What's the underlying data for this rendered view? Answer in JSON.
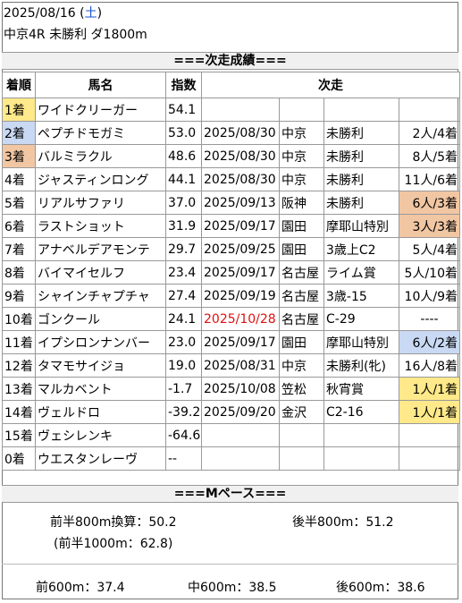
{
  "header": {
    "date": "2025/08/16",
    "weekday_open": "(",
    "weekday": "土",
    "weekday_close": ")",
    "race": "中京4R 未勝利 ダ1800m"
  },
  "next_section_title": "===次走成績===",
  "columns": {
    "rank": "着順",
    "horse": "馬名",
    "index": "指数",
    "next": "次走"
  },
  "rows": [
    {
      "rank": "1着",
      "rank_hl": "gold",
      "horse": "ワイドクリーガー",
      "index": "54.1",
      "date": "",
      "date_red": false,
      "course": "",
      "race": "",
      "result": "",
      "result_hl": ""
    },
    {
      "rank": "2着",
      "rank_hl": "silver",
      "horse": "ペプチドモガミ",
      "index": "53.0",
      "date": "2025/08/30",
      "date_red": false,
      "course": "中京",
      "race": "未勝利",
      "result": "2人/4着",
      "result_hl": ""
    },
    {
      "rank": "3着",
      "rank_hl": "bronze",
      "horse": "バルミラクル",
      "index": "48.6",
      "date": "2025/08/30",
      "date_red": false,
      "course": "中京",
      "race": "未勝利",
      "result": "8人/5着",
      "result_hl": ""
    },
    {
      "rank": "4着",
      "rank_hl": "",
      "horse": "ジャスティンロング",
      "index": "44.1",
      "date": "2025/08/30",
      "date_red": false,
      "course": "中京",
      "race": "未勝利",
      "result": "11人/6着",
      "result_hl": ""
    },
    {
      "rank": "5着",
      "rank_hl": "",
      "horse": "リアルサファリ",
      "index": "37.0",
      "date": "2025/09/13",
      "date_red": false,
      "course": "阪神",
      "race": "未勝利",
      "result": "6人/3着",
      "result_hl": "bronze"
    },
    {
      "rank": "6着",
      "rank_hl": "",
      "horse": "ラストショット",
      "index": "31.9",
      "date": "2025/09/17",
      "date_red": false,
      "course": "園田",
      "race": "摩耶山特別",
      "result": "3人/3着",
      "result_hl": "bronze"
    },
    {
      "rank": "7着",
      "rank_hl": "",
      "horse": "アナベルデアモンテ",
      "index": "29.7",
      "date": "2025/09/25",
      "date_red": false,
      "course": "園田",
      "race": "3歳上C2",
      "result": "5人/4着",
      "result_hl": ""
    },
    {
      "rank": "8着",
      "rank_hl": "",
      "horse": "バイマイセルフ",
      "index": "23.4",
      "date": "2025/09/17",
      "date_red": false,
      "course": "名古屋",
      "race": "ライム賞",
      "result": "5人/10着",
      "result_hl": ""
    },
    {
      "rank": "9着",
      "rank_hl": "",
      "horse": "シャインチャプチャ",
      "index": "27.4",
      "date": "2025/09/19",
      "date_red": false,
      "course": "名古屋",
      "race": "3歳-15",
      "result": "10人/9着",
      "result_hl": ""
    },
    {
      "rank": "10着",
      "rank_hl": "",
      "horse": "ゴンクール",
      "index": "24.1",
      "date": "2025/10/28",
      "date_red": true,
      "course": "名古屋",
      "race": "C-29",
      "result": "----",
      "result_hl": "center"
    },
    {
      "rank": "11着",
      "rank_hl": "",
      "horse": "イプシロンナンバー",
      "index": "23.0",
      "date": "2025/09/17",
      "date_red": false,
      "course": "園田",
      "race": "摩耶山特別",
      "result": "6人/2着",
      "result_hl": "silver"
    },
    {
      "rank": "12着",
      "rank_hl": "",
      "horse": "タマモサイジョ",
      "index": "19.0",
      "date": "2025/08/31",
      "date_red": false,
      "course": "中京",
      "race": "未勝利(牝)",
      "result": "16人/8着",
      "result_hl": ""
    },
    {
      "rank": "13着",
      "rank_hl": "",
      "horse": "マルカベント",
      "index": "-1.7",
      "date": "2025/10/08",
      "date_red": false,
      "course": "笠松",
      "race": "秋宵賞",
      "result": "1人/1着",
      "result_hl": "gold"
    },
    {
      "rank": "14着",
      "rank_hl": "",
      "horse": "ヴェルドロ",
      "index": "-39.2",
      "date": "2025/09/20",
      "date_red": false,
      "course": "金沢",
      "race": "C2-16",
      "result": "1人/1着",
      "result_hl": "gold"
    },
    {
      "rank": "15着",
      "rank_hl": "",
      "horse": "ヴェシレンキ",
      "index": "-64.6",
      "date": "",
      "date_red": false,
      "course": "",
      "race": "",
      "result": "",
      "result_hl": ""
    },
    {
      "rank": "0着",
      "rank_hl": "",
      "horse": "ウエスタンレーヴ",
      "index": "--",
      "date": "",
      "date_red": false,
      "course": "",
      "race": "",
      "result": "",
      "result_hl": ""
    }
  ],
  "pace_section_title": "===Mペース===",
  "pace": {
    "first800": "前半800m換算：50.2",
    "second800": "後半800m：51.2",
    "first1000": "(前半1000m：62.8)",
    "front600": "前600m：37.4",
    "mid600": "中600m：38.5",
    "rear600": "後600m：38.6"
  }
}
